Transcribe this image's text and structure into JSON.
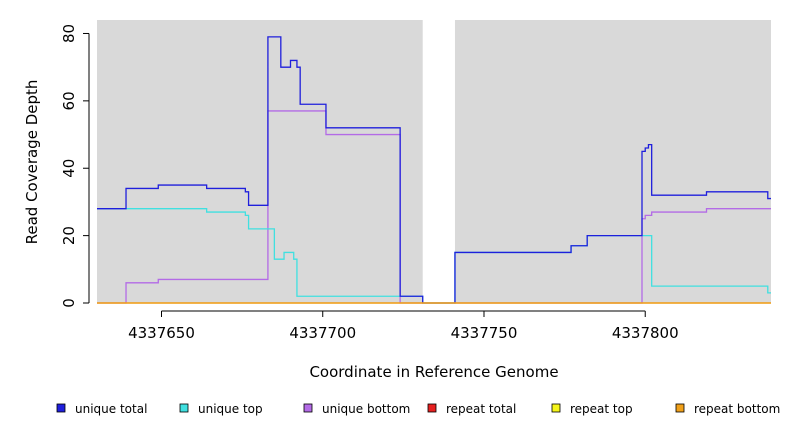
{
  "chart_data": {
    "type": "line",
    "step": true,
    "title": "",
    "xlabel": "Coordinate in Reference Genome",
    "ylabel": "Read Coverage Depth",
    "xlim": [
      4337630,
      4337839
    ],
    "ylim": [
      0,
      84
    ],
    "x_ticks": [
      4337650,
      4337700,
      4337750,
      4337800
    ],
    "x_tick_labels": [
      "4337650",
      "4337700",
      "4337750",
      "4337800"
    ],
    "y_ticks": [
      0,
      20,
      40,
      60,
      80
    ],
    "y_tick_labels": [
      "0",
      "20",
      "40",
      "60",
      "80"
    ],
    "background": "#d9d9d9",
    "gap_region": [
      4337731,
      4337741
    ],
    "legend_position": "bottom",
    "series": [
      {
        "name": "unique total",
        "color": "#1f1fdc",
        "points": [
          [
            4337630,
            28
          ],
          [
            4337639,
            28
          ],
          [
            4337639,
            34
          ],
          [
            4337649,
            34
          ],
          [
            4337649,
            35
          ],
          [
            4337664,
            35
          ],
          [
            4337664,
            34
          ],
          [
            4337676,
            34
          ],
          [
            4337676,
            33
          ],
          [
            4337677,
            33
          ],
          [
            4337677,
            29
          ],
          [
            4337683,
            29
          ],
          [
            4337683,
            79
          ],
          [
            4337687,
            79
          ],
          [
            4337687,
            70
          ],
          [
            4337690,
            70
          ],
          [
            4337690,
            72
          ],
          [
            4337692,
            72
          ],
          [
            4337692,
            70
          ],
          [
            4337693,
            70
          ],
          [
            4337693,
            59
          ],
          [
            4337701,
            59
          ],
          [
            4337701,
            52
          ],
          [
            4337724,
            52
          ],
          [
            4337724,
            2
          ],
          [
            4337731,
            2
          ],
          [
            4337731,
            0
          ],
          [
            4337741,
            0
          ],
          [
            4337741,
            15
          ],
          [
            4337777,
            15
          ],
          [
            4337777,
            17
          ],
          [
            4337782,
            17
          ],
          [
            4337782,
            20
          ],
          [
            4337799,
            20
          ],
          [
            4337799,
            45
          ],
          [
            4337800,
            45
          ],
          [
            4337800,
            46
          ],
          [
            4337801,
            46
          ],
          [
            4337801,
            47
          ],
          [
            4337802,
            47
          ],
          [
            4337802,
            32
          ],
          [
            4337819,
            32
          ],
          [
            4337819,
            33
          ],
          [
            4337838,
            33
          ],
          [
            4337838,
            31
          ],
          [
            4337839,
            31
          ]
        ]
      },
      {
        "name": "unique top",
        "color": "#40e0e0",
        "points": [
          [
            4337630,
            28
          ],
          [
            4337664,
            28
          ],
          [
            4337664,
            27
          ],
          [
            4337676,
            27
          ],
          [
            4337676,
            26
          ],
          [
            4337677,
            26
          ],
          [
            4337677,
            22
          ],
          [
            4337685,
            22
          ],
          [
            4337685,
            13
          ],
          [
            4337688,
            13
          ],
          [
            4337688,
            15
          ],
          [
            4337691,
            15
          ],
          [
            4337691,
            13
          ],
          [
            4337692,
            13
          ],
          [
            4337692,
            2
          ],
          [
            4337724,
            2
          ],
          [
            4337724,
            2
          ],
          [
            4337731,
            2
          ],
          [
            4337731,
            0
          ],
          [
            4337741,
            0
          ],
          [
            4337741,
            15
          ],
          [
            4337777,
            15
          ],
          [
            4337777,
            17
          ],
          [
            4337782,
            17
          ],
          [
            4337782,
            20
          ],
          [
            4337802,
            20
          ],
          [
            4337802,
            5
          ],
          [
            4337838,
            5
          ],
          [
            4337838,
            3
          ],
          [
            4337839,
            3
          ]
        ]
      },
      {
        "name": "unique bottom",
        "color": "#b36be6",
        "points": [
          [
            4337630,
            0
          ],
          [
            4337639,
            0
          ],
          [
            4337639,
            6
          ],
          [
            4337649,
            6
          ],
          [
            4337649,
            7
          ],
          [
            4337683,
            7
          ],
          [
            4337683,
            57
          ],
          [
            4337701,
            57
          ],
          [
            4337701,
            50
          ],
          [
            4337724,
            50
          ],
          [
            4337724,
            0
          ],
          [
            4337799,
            0
          ],
          [
            4337799,
            25
          ],
          [
            4337800,
            25
          ],
          [
            4337800,
            26
          ],
          [
            4337802,
            26
          ],
          [
            4337802,
            27
          ],
          [
            4337819,
            27
          ],
          [
            4337819,
            28
          ],
          [
            4337839,
            28
          ]
        ]
      },
      {
        "name": "repeat total",
        "color": "#e62020",
        "points": [
          [
            4337630,
            0
          ],
          [
            4337839,
            0
          ]
        ]
      },
      {
        "name": "repeat top",
        "color": "#f5f51a",
        "points": [
          [
            4337630,
            0
          ],
          [
            4337839,
            0
          ]
        ]
      },
      {
        "name": "repeat bottom",
        "color": "#f0a01a",
        "points": [
          [
            4337630,
            0
          ],
          [
            4337839,
            0
          ]
        ]
      }
    ]
  }
}
